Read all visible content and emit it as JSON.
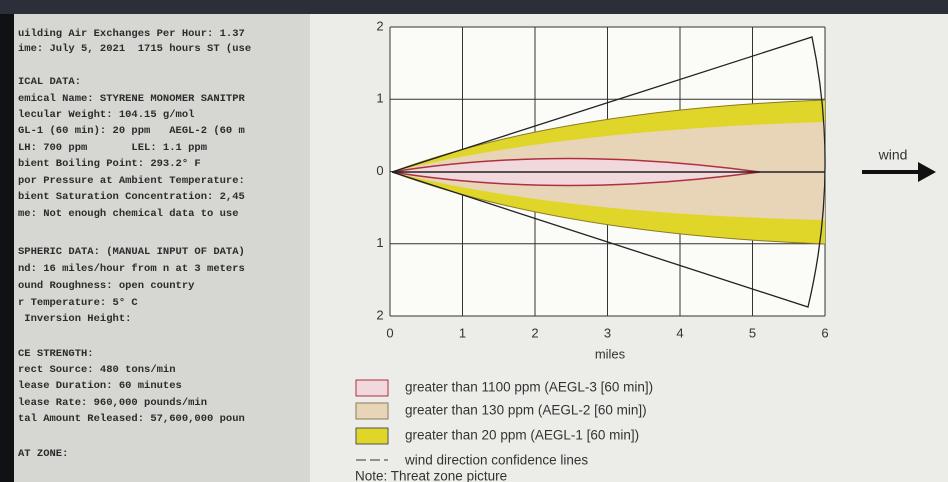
{
  "text_panel": {
    "lines": [
      "uilding Air Exchanges Per Hour: 1.37",
      "ime: July 5, 2021  1715 hours ST (use",
      "ICAL DATA:",
      "emical Name: STYRENE MONOMER SANITPR",
      "lecular Weight: 104.15 g/mol",
      "GL-1 (60 min): 20 ppm   AEGL-2 (60 m",
      "LH: 700 ppm       LEL: 1.1 ppm",
      "bient Boiling Point: 293.2° F",
      "por Pressure at Ambient Temperature:",
      "bient Saturation Concentration: 2,45",
      "me: Not enough chemical data to use",
      "SPHERIC DATA: (MANUAL INPUT OF DATA)",
      "nd: 16 miles/hour from n at 3 meters",
      "ound Roughness: open country",
      "r Temperature: 5° C",
      " Inversion Height:",
      "CE STRENGTH:",
      "rect Source: 480 tons/min",
      "lease Duration: 60 minutes",
      "lease Rate: 960,000 pounds/min",
      "tal Amount Released: 57,600,000 poun",
      "AT ZONE:"
    ]
  },
  "chart": {
    "xlabel": "miles",
    "wind_label": "wind",
    "xlim": [
      0,
      6
    ],
    "xticks": [
      0,
      1,
      2,
      3,
      4,
      5,
      6
    ],
    "ylim": [
      -2,
      2
    ],
    "yticks": [
      {
        "value": 2,
        "label": "2"
      },
      {
        "value": 1,
        "label": "1"
      },
      0,
      {
        "value": -1,
        "label": "1"
      },
      {
        "value": -2,
        "label": "2"
      }
    ],
    "legend": [
      "greater than 1100 ppm (AEGL-3 [60 min])",
      "greater than 130 ppm (AEGL-2 [60 min])",
      "greater than 20 ppm (AEGL-1 [60 min])",
      "wind direction confidence lines"
    ],
    "note": "Note: Threat zone picture"
  }
}
